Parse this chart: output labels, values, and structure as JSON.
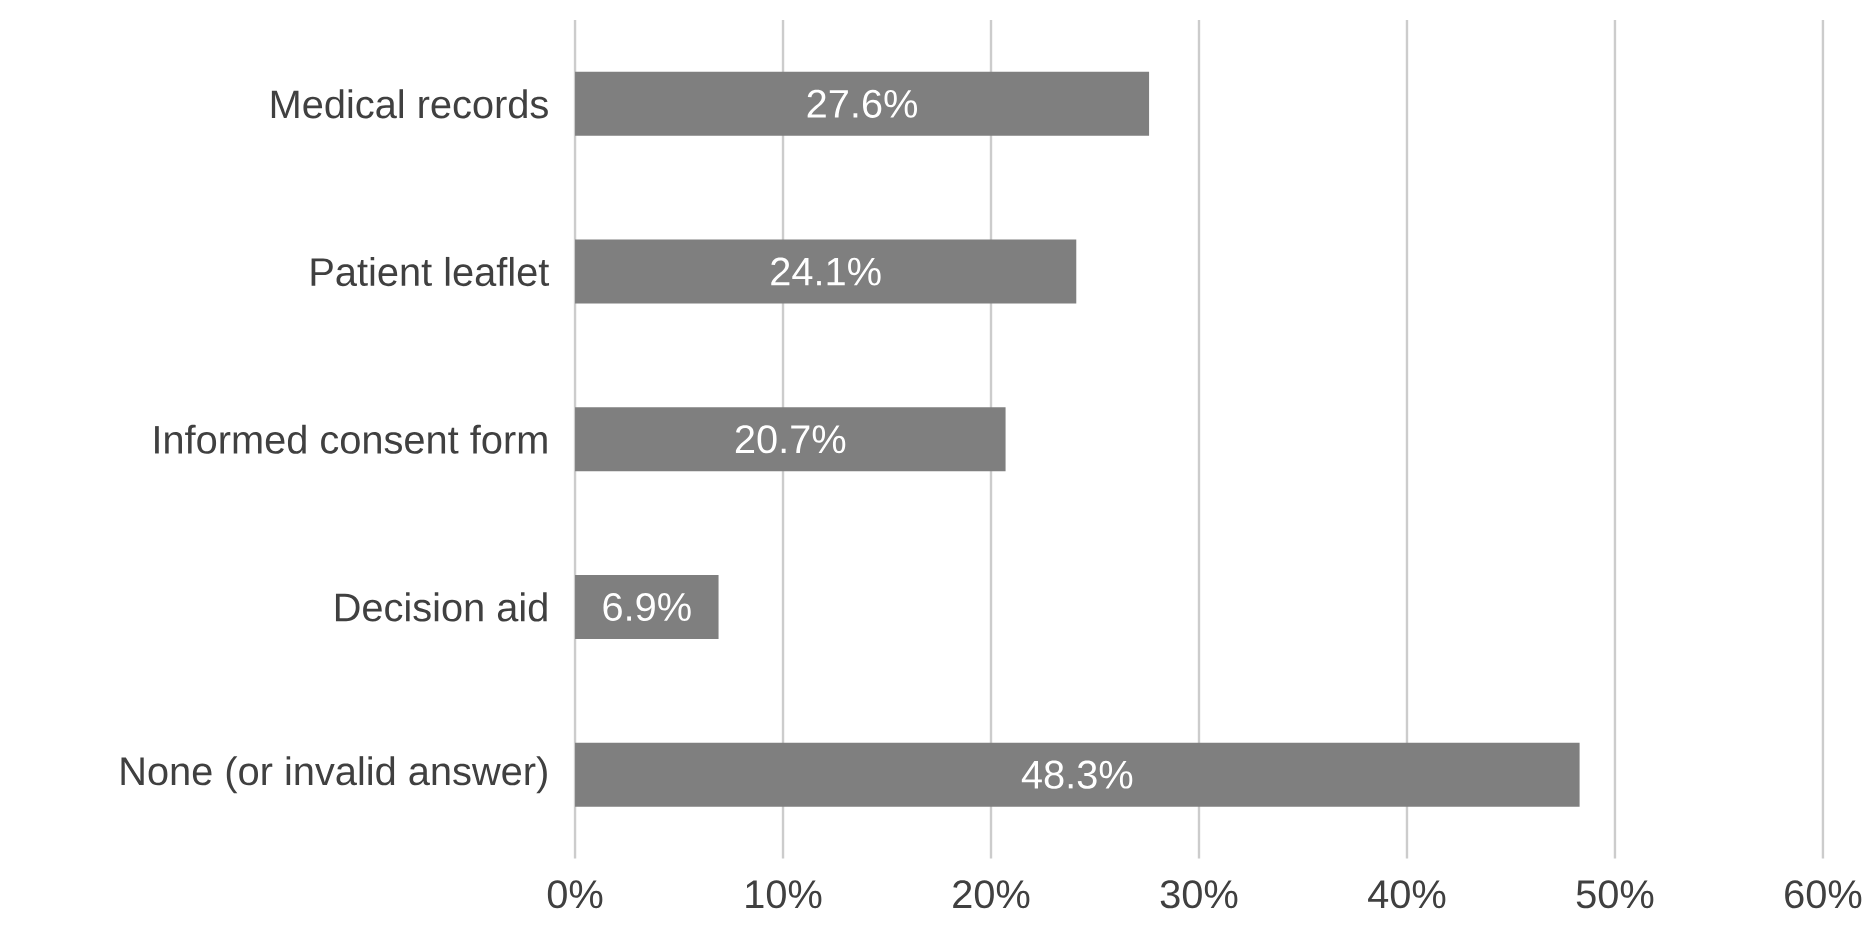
{
  "chart_data": {
    "type": "bar",
    "orientation": "horizontal",
    "categories": [
      "Medical records",
      "Patient leaflet",
      "Informed consent form",
      "Decision aid",
      "None (or invalid answer)"
    ],
    "values": [
      27.6,
      24.1,
      20.7,
      6.9,
      48.3
    ],
    "value_labels": [
      "27.6%",
      "24.1%",
      "20.7%",
      "6.9%",
      "48.3%"
    ],
    "color": "#7f7f7f",
    "xlim": [
      0,
      60
    ],
    "xticks": [
      {
        "value": 0,
        "label": "0%"
      },
      {
        "value": 10,
        "label": "10%"
      },
      {
        "value": 20,
        "label": "20%"
      },
      {
        "value": 30,
        "label": "30%"
      },
      {
        "value": 40,
        "label": "40%"
      },
      {
        "value": 50,
        "label": "50%"
      },
      {
        "value": 60,
        "label": "60%"
      }
    ],
    "grid": "x"
  }
}
